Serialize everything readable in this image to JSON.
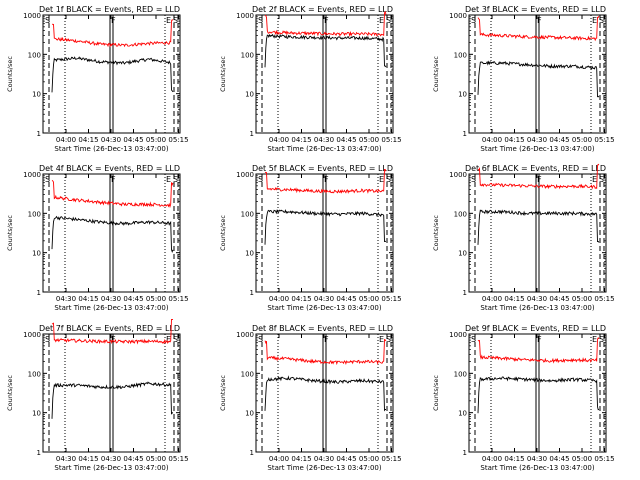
{
  "window": {
    "title": ""
  },
  "colors": {
    "events": "#000000",
    "lld": "#ff0000",
    "frame": "#000000",
    "background": "#ffffff"
  },
  "common": {
    "start_label": "Start Time (26-Dec-13 03:47:00)",
    "ylabel": "Counts/sec",
    "y_ticks": [
      "1",
      "10",
      "100",
      "1000"
    ],
    "x_ticks": [
      "04:00",
      "04:15",
      "04:30",
      "04:45",
      "05:00",
      "05:15"
    ],
    "x_ticks_alt": [
      "04:30",
      "04:15",
      "04:30",
      "04:45",
      "05:00",
      "05:15"
    ],
    "marker_labels": {
      "left": "S",
      "center": "F",
      "right_e": "E",
      "right_s": "S"
    }
  },
  "chart_data": [
    {
      "type": "line",
      "title": "Det 1f BLACK = Events, RED = LLD",
      "xlabel": "Start Time (26-Dec-13 03:47:00)",
      "ylabel": "Counts/sec",
      "y_scale": "log",
      "ylim": [
        1,
        1000
      ],
      "x_tick_labels": [
        "04:00",
        "04:15",
        "04:30",
        "04:45",
        "05:00",
        "05:15"
      ],
      "series": [
        {
          "name": "Events",
          "color": "#000000",
          "approx_level": [
            70,
            80,
            65,
            60,
            75,
            60
          ]
        },
        {
          "name": "LLD",
          "color": "#ff0000",
          "approx_level": [
            250,
            220,
            180,
            170,
            190,
            200
          ]
        }
      ]
    },
    {
      "type": "line",
      "title": "Det 2f BLACK = Events, RED = LLD",
      "xlabel": "Start Time (26-Dec-13 03:47:00)",
      "ylabel": "Counts/sec",
      "y_scale": "log",
      "ylim": [
        1,
        1000
      ],
      "x_tick_labels": [
        "04:00",
        "04:15",
        "04:30",
        "04:45",
        "05:00",
        "05:15"
      ],
      "series": [
        {
          "name": "Events",
          "color": "#000000",
          "approx_level": [
            300,
            280,
            270,
            260,
            260,
            240
          ]
        },
        {
          "name": "LLD",
          "color": "#ff0000",
          "approx_level": [
            380,
            350,
            340,
            330,
            330,
            320
          ]
        }
      ]
    },
    {
      "type": "line",
      "title": "Det 3f BLACK = Events, RED = LLD",
      "xlabel": "Start Time (26-Dec-13 03:47:00)",
      "ylabel": "Counts/sec",
      "y_scale": "log",
      "ylim": [
        1,
        1000
      ],
      "x_tick_labels": [
        "04:00",
        "04:15",
        "04:30",
        "04:45",
        "05:00",
        "05:15"
      ],
      "series": [
        {
          "name": "Events",
          "color": "#000000",
          "approx_level": [
            60,
            60,
            55,
            50,
            50,
            45
          ]
        },
        {
          "name": "LLD",
          "color": "#ff0000",
          "approx_level": [
            320,
            300,
            280,
            270,
            260,
            250
          ]
        }
      ]
    },
    {
      "type": "line",
      "title": "Det 4f BLACK = Events, RED = LLD",
      "xlabel": "Start Time (26-Dec-13 03:47:00)",
      "ylabel": "Counts/sec",
      "y_scale": "log",
      "ylim": [
        1,
        1000
      ],
      "x_tick_labels": [
        "04:30",
        "04:15",
        "04:30",
        "04:45",
        "05:00",
        "05:15"
      ],
      "series": [
        {
          "name": "Events",
          "color": "#000000",
          "approx_level": [
            80,
            70,
            60,
            55,
            60,
            55
          ]
        },
        {
          "name": "LLD",
          "color": "#ff0000",
          "approx_level": [
            260,
            220,
            190,
            170,
            170,
            160
          ]
        }
      ]
    },
    {
      "type": "line",
      "title": "Det 5f BLACK = Events, RED = LLD",
      "xlabel": "Start Time (26-Dec-13 03:47:00)",
      "ylabel": "Counts/sec",
      "y_scale": "log",
      "ylim": [
        1,
        1000
      ],
      "x_tick_labels": [
        "04:00",
        "04:15",
        "04:30",
        "04:45",
        "05:00",
        "05:15"
      ],
      "series": [
        {
          "name": "Events",
          "color": "#000000",
          "approx_level": [
            110,
            110,
            100,
            95,
            100,
            90
          ]
        },
        {
          "name": "LLD",
          "color": "#ff0000",
          "approx_level": [
            420,
            400,
            370,
            360,
            380,
            360
          ]
        }
      ]
    },
    {
      "type": "line",
      "title": "Det 6f BLACK = Events, RED = LLD",
      "xlabel": "Start Time (26-Dec-13 03:47:00)",
      "ylabel": "Counts/sec",
      "y_scale": "log",
      "ylim": [
        1,
        1000
      ],
      "x_tick_labels": [
        "04:00",
        "04:15",
        "04:30",
        "04:45",
        "05:00",
        "05:15"
      ],
      "series": [
        {
          "name": "Events",
          "color": "#000000",
          "approx_level": [
            110,
            110,
            100,
            100,
            100,
            95
          ]
        },
        {
          "name": "LLD",
          "color": "#ff0000",
          "approx_level": [
            550,
            520,
            500,
            480,
            490,
            470
          ]
        }
      ]
    },
    {
      "type": "line",
      "title": "Det 7f BLACK = Events, RED = LLD",
      "xlabel": "Start Time (26-Dec-13 03:47:00)",
      "ylabel": "Counts/sec",
      "y_scale": "log",
      "ylim": [
        1,
        1000
      ],
      "x_tick_labels": [
        "04:30",
        "04:15",
        "04:30",
        "04:45",
        "05:00",
        "05:15"
      ],
      "series": [
        {
          "name": "Events",
          "color": "#000000",
          "approx_level": [
            50,
            50,
            45,
            45,
            55,
            50
          ]
        },
        {
          "name": "LLD",
          "color": "#ff0000",
          "approx_level": [
            700,
            680,
            650,
            640,
            650,
            640
          ]
        }
      ]
    },
    {
      "type": "line",
      "title": "Det 8f BLACK = Events, RED = LLD",
      "xlabel": "Start Time (26-Dec-13 03:47:00)",
      "ylabel": "Counts/sec",
      "y_scale": "log",
      "ylim": [
        1,
        1000
      ],
      "x_tick_labels": [
        "04:00",
        "04:15",
        "04:30",
        "04:45",
        "05:00",
        "05:15"
      ],
      "series": [
        {
          "name": "Events",
          "color": "#000000",
          "approx_level": [
            70,
            75,
            65,
            60,
            65,
            60
          ]
        },
        {
          "name": "LLD",
          "color": "#ff0000",
          "approx_level": [
            250,
            230,
            200,
            190,
            200,
            190
          ]
        }
      ]
    },
    {
      "type": "line",
      "title": "Det 9f BLACK = Events, RED = LLD",
      "xlabel": "Start Time (26-Dec-13 03:47:00)",
      "ylabel": "Counts/sec",
      "y_scale": "log",
      "ylim": [
        1,
        1000
      ],
      "x_tick_labels": [
        "04:00",
        "04:15",
        "04:30",
        "04:45",
        "05:00",
        "05:15"
      ],
      "series": [
        {
          "name": "Events",
          "color": "#000000",
          "approx_level": [
            70,
            75,
            70,
            65,
            70,
            65
          ]
        },
        {
          "name": "LLD",
          "color": "#ff0000",
          "approx_level": [
            260,
            240,
            220,
            210,
            220,
            210
          ]
        }
      ]
    }
  ]
}
